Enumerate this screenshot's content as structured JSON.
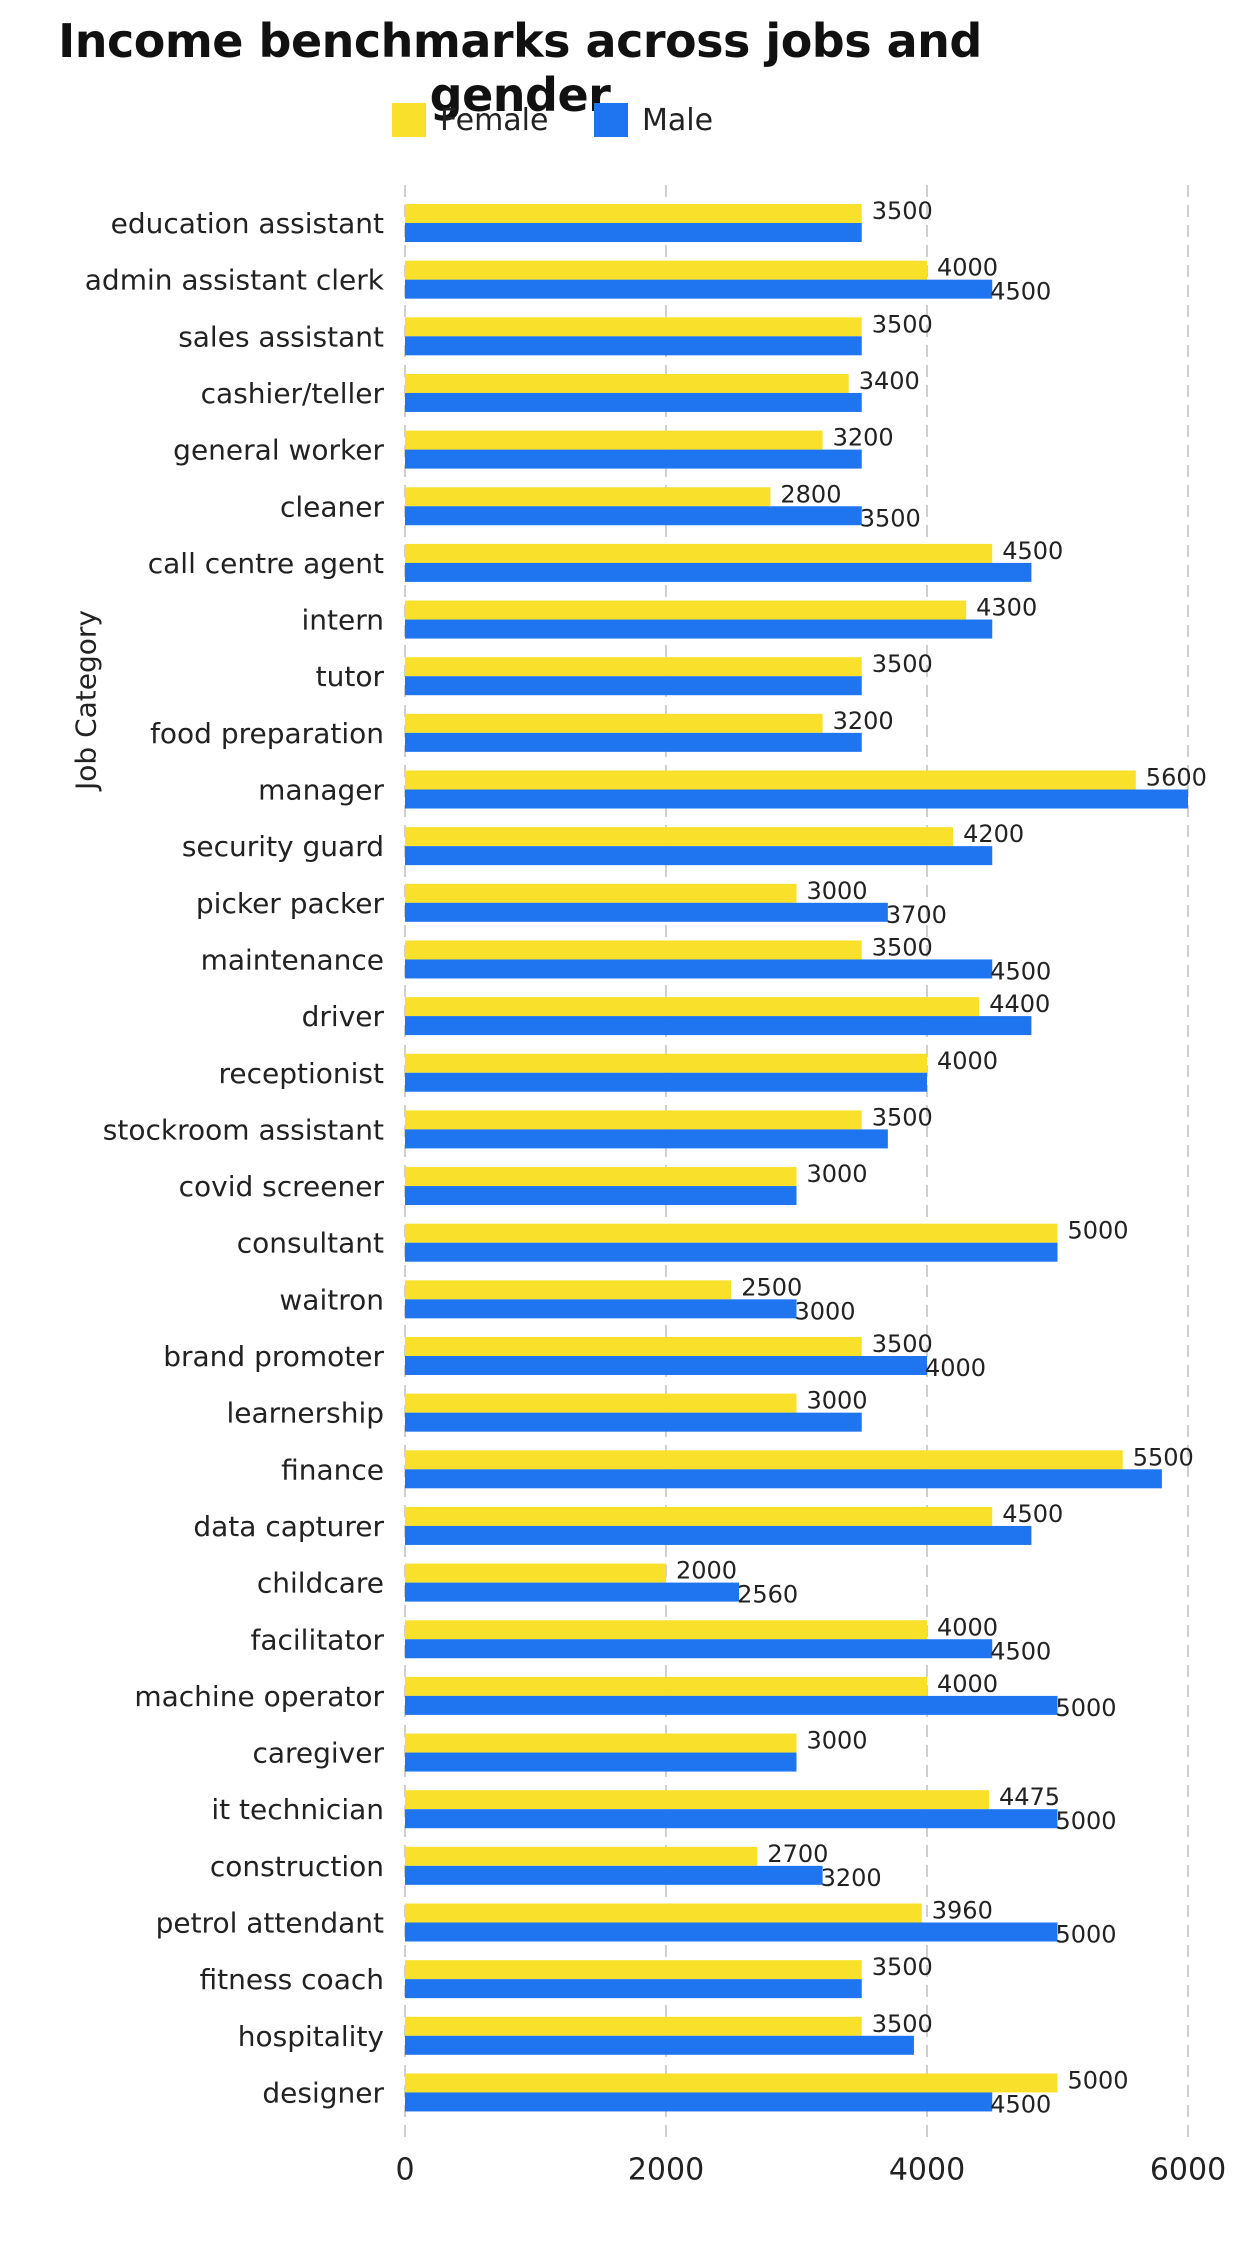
{
  "chart_data": {
    "type": "bar",
    "orientation": "horizontal",
    "title": "Income benchmarks across jobs and gender",
    "ylabel": "Job Category",
    "xlabel": "",
    "xlim": [
      0,
      6000
    ],
    "xticks": [
      0,
      2000,
      4000,
      6000
    ],
    "grid": "x-dashed",
    "legend_position": "top",
    "categories": [
      "education assistant",
      "admin assistant clerk",
      "sales assistant",
      "cashier/teller",
      "general worker",
      "cleaner",
      "call centre agent",
      "intern",
      "tutor",
      "food preparation",
      "manager",
      "security guard",
      "picker packer",
      "maintenance",
      "driver",
      "receptionist",
      "stockroom assistant",
      "covid screener",
      "consultant",
      "waitron",
      "brand promoter",
      "learnership",
      "finance",
      "data capturer",
      "childcare",
      "facilitator",
      "machine operator",
      "caregiver",
      "it technician",
      "construction",
      "petrol attendant",
      "fitness coach",
      "hospitality",
      "designer"
    ],
    "series": [
      {
        "name": "Female",
        "color": "#F9E12B",
        "values": [
          3500,
          4000,
          3500,
          3400,
          3200,
          2800,
          4500,
          4300,
          3500,
          3200,
          5600,
          4200,
          3000,
          3500,
          4400,
          4000,
          3500,
          3000,
          5000,
          2500,
          3500,
          3000,
          5500,
          4500,
          2000,
          4000,
          4000,
          3000,
          4475,
          2700,
          3960,
          3500,
          3500,
          5000
        ]
      },
      {
        "name": "Male",
        "color": "#1F74F0",
        "values": [
          3500,
          4500,
          3500,
          3500,
          3500,
          3500,
          4800,
          4500,
          3500,
          3500,
          6000,
          4500,
          3700,
          4500,
          4800,
          4000,
          3700,
          3000,
          5000,
          3000,
          4000,
          3500,
          5800,
          4800,
          2560,
          4500,
          5000,
          3000,
          5000,
          3200,
          5000,
          3500,
          3900,
          4500
        ]
      }
    ],
    "data_labels": [
      [
        "3500",
        ""
      ],
      [
        "4000",
        "4500"
      ],
      [
        "3500",
        ""
      ],
      [
        "3400",
        ""
      ],
      [
        "3200",
        ""
      ],
      [
        "2800",
        "3500"
      ],
      [
        "4500",
        ""
      ],
      [
        "4300",
        ""
      ],
      [
        "3500",
        ""
      ],
      [
        "3200",
        ""
      ],
      [
        "5600",
        ""
      ],
      [
        "4200",
        ""
      ],
      [
        "3000",
        "3700"
      ],
      [
        "3500",
        "4500"
      ],
      [
        "4400",
        ""
      ],
      [
        "4000",
        ""
      ],
      [
        "3500",
        ""
      ],
      [
        "3000",
        ""
      ],
      [
        "5000",
        ""
      ],
      [
        "2500",
        "3000"
      ],
      [
        "3500",
        "4000"
      ],
      [
        "3000",
        ""
      ],
      [
        "5500",
        ""
      ],
      [
        "4500",
        ""
      ],
      [
        "2000",
        "2560"
      ],
      [
        "4000",
        "4500"
      ],
      [
        "4000",
        "5000"
      ],
      [
        "3000",
        ""
      ],
      [
        "4475",
        "5000"
      ],
      [
        "2700",
        "3200"
      ],
      [
        "3960",
        "5000"
      ],
      [
        "3500",
        ""
      ],
      [
        "3500",
        ""
      ],
      [
        "5000",
        "4500"
      ]
    ]
  }
}
